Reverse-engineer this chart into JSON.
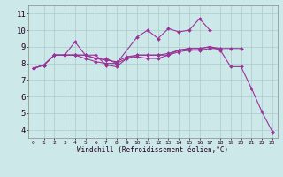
{
  "bg_color": "#cce8e8",
  "line_color": "#993399",
  "grid_color": "#aacccc",
  "xlabel": "Windchill (Refroidissement éolien,°C)",
  "ylabel_ticks": [
    4,
    5,
    6,
    7,
    8,
    9,
    10,
    11
  ],
  "xlim": [
    -0.5,
    23.5
  ],
  "ylim": [
    3.5,
    11.5
  ],
  "series": [
    [
      7.7,
      7.9,
      8.5,
      8.5,
      9.3,
      8.5,
      8.5,
      7.9,
      7.8,
      8.3,
      8.4,
      8.3,
      8.3,
      8.5,
      8.8,
      8.9,
      8.9,
      9.0,
      8.8,
      7.8,
      7.8,
      6.5,
      5.1,
      3.9
    ],
    [
      7.7,
      7.9,
      8.5,
      8.5,
      8.5,
      8.5,
      8.3,
      8.3,
      8.0,
      8.3,
      8.5,
      8.5,
      8.5,
      8.5,
      8.7,
      8.8,
      8.8,
      8.9,
      8.9,
      8.9,
      8.9,
      null,
      null,
      null
    ],
    [
      7.7,
      7.9,
      8.5,
      8.5,
      8.5,
      8.5,
      8.3,
      8.2,
      8.1,
      8.4,
      8.5,
      8.5,
      8.5,
      8.6,
      8.8,
      8.9,
      8.9,
      9.0,
      8.9,
      null,
      null,
      null,
      null,
      null
    ],
    [
      7.7,
      7.9,
      8.5,
      8.5,
      8.5,
      8.3,
      8.1,
      8.0,
      8.0,
      null,
      9.6,
      10.0,
      9.5,
      10.1,
      9.9,
      10.0,
      10.7,
      10.0,
      null,
      null,
      null,
      null,
      null,
      null
    ]
  ]
}
